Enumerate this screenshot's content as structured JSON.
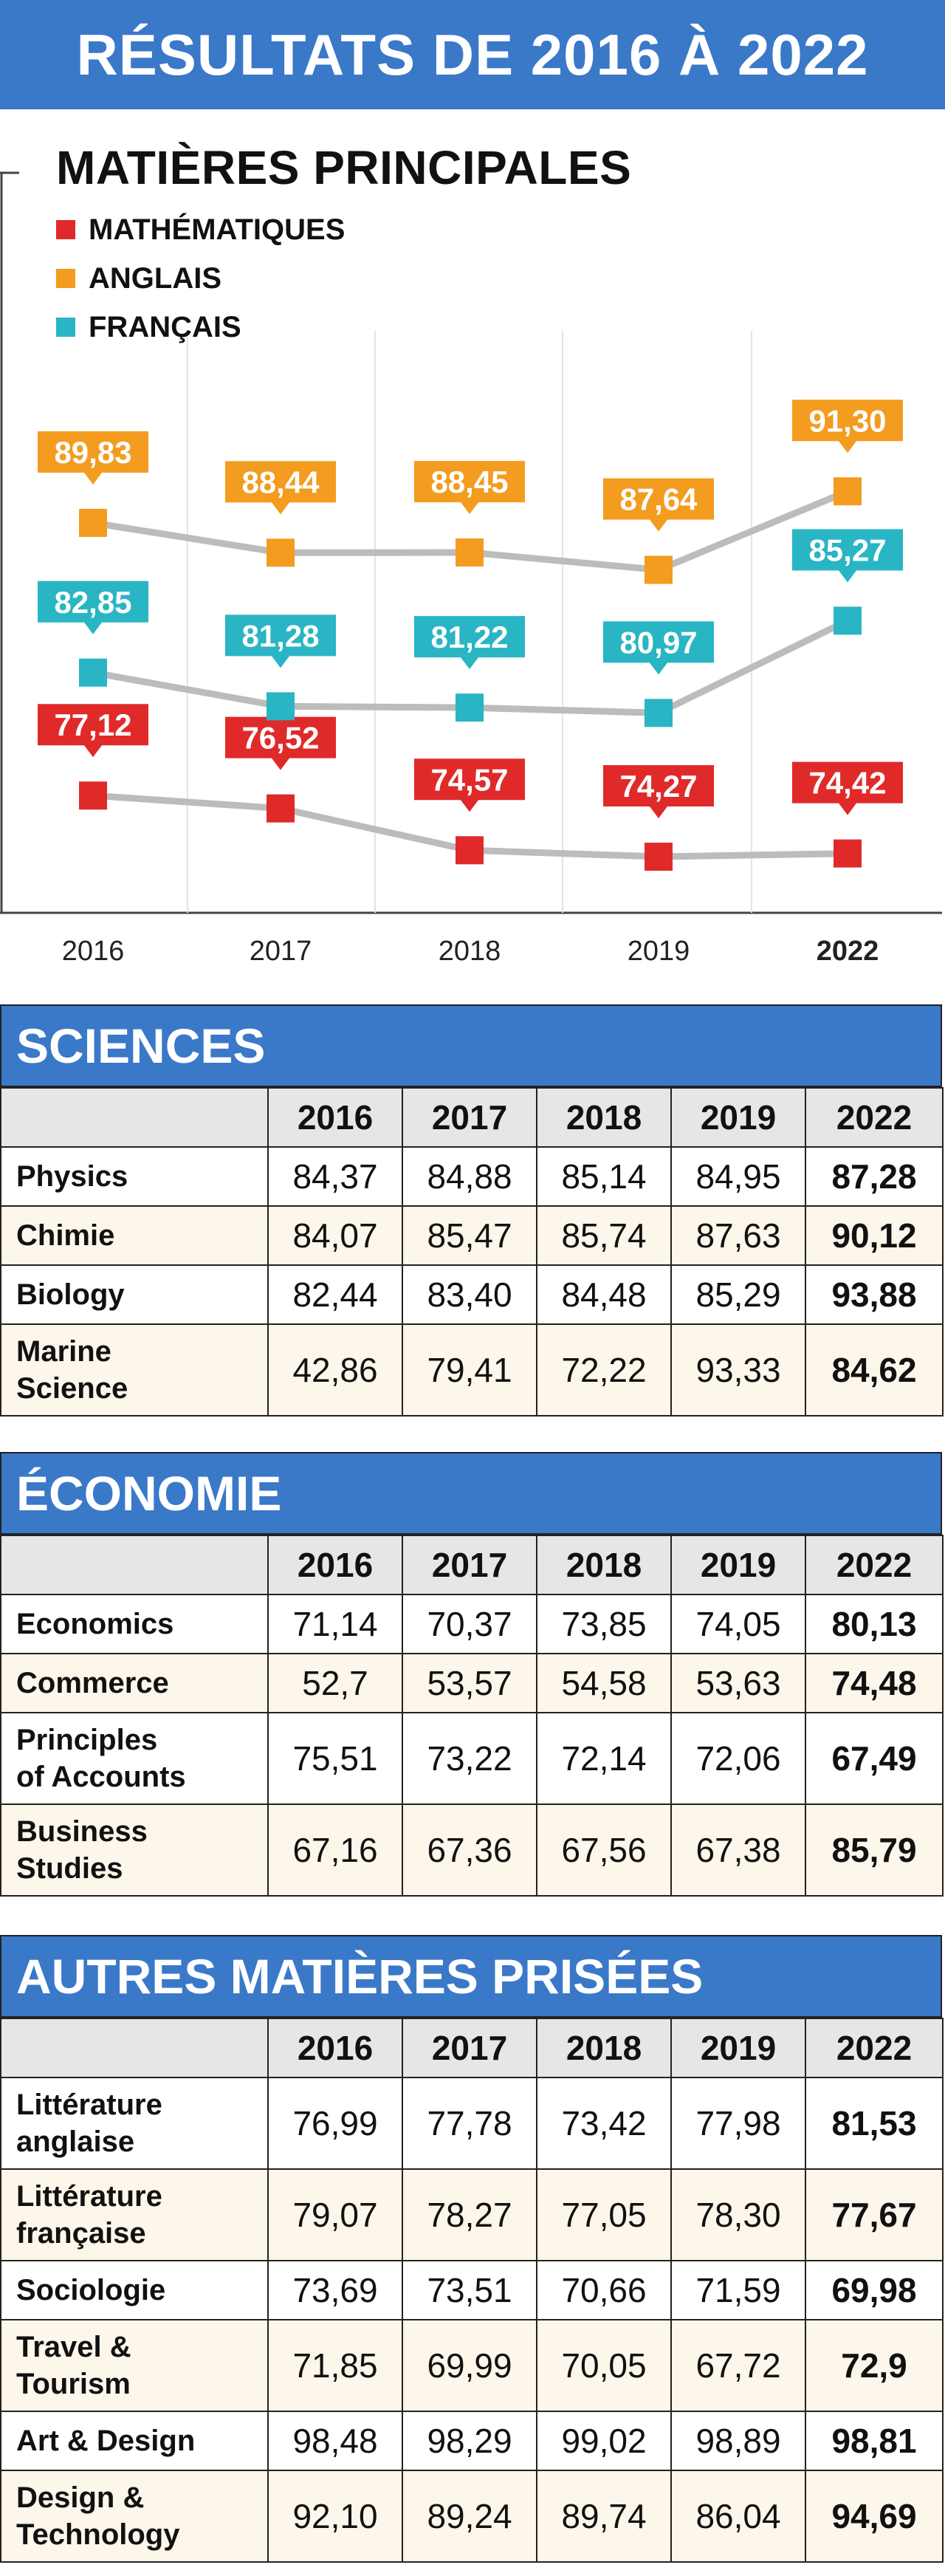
{
  "banner": {
    "title": "RÉSULTATS DE 2016 À 2022"
  },
  "chart_data": {
    "type": "line",
    "title": "MATIÈRES PRINCIPALES",
    "categories": [
      "2016",
      "2017",
      "2018",
      "2019",
      "2022"
    ],
    "series": [
      {
        "name": "MATHÉMATIQUES",
        "color": "#e02a2a",
        "values": [
          77.12,
          76.52,
          74.57,
          74.27,
          74.42
        ],
        "labels": [
          "77,12",
          "76,52",
          "74,57",
          "74,27",
          "74,42"
        ]
      },
      {
        "name": "ANGLAIS",
        "color": "#f39c1f",
        "values": [
          89.83,
          88.44,
          88.45,
          87.64,
          91.3
        ],
        "labels": [
          "89,83",
          "88,44",
          "88,45",
          "87,64",
          "91,30"
        ]
      },
      {
        "name": "FRANÇAIS",
        "color": "#29b5c4",
        "values": [
          82.85,
          81.28,
          81.22,
          80.97,
          85.27
        ],
        "labels": [
          "82,85",
          "81,28",
          "81,22",
          "80,97",
          "85,27"
        ]
      }
    ]
  },
  "tables": [
    {
      "title": "SCIENCES",
      "years": [
        "2016",
        "2017",
        "2018",
        "2019",
        "2022"
      ],
      "rows": [
        {
          "name": "Physics",
          "values": [
            "84,37",
            "84,88",
            "85,14",
            "84,95",
            "87,28"
          ]
        },
        {
          "name": "Chimie",
          "values": [
            "84,07",
            "85,47",
            "85,74",
            "87,63",
            "90,12"
          ]
        },
        {
          "name": "Biology",
          "values": [
            "82,44",
            "83,40",
            "84,48",
            "85,29",
            "93,88"
          ]
        },
        {
          "name": "Marine\nScience",
          "values": [
            "42,86",
            "79,41",
            "72,22",
            "93,33",
            "84,62"
          ]
        }
      ]
    },
    {
      "title": "ÉCONOMIE",
      "years": [
        "2016",
        "2017",
        "2018",
        "2019",
        "2022"
      ],
      "rows": [
        {
          "name": "Economics",
          "values": [
            "71,14",
            "70,37",
            "73,85",
            "74,05",
            "80,13"
          ]
        },
        {
          "name": "Commerce",
          "values": [
            "52,7",
            "53,57",
            "54,58",
            "53,63",
            "74,48"
          ]
        },
        {
          "name": "Principles\nof Accounts",
          "values": [
            "75,51",
            "73,22",
            "72,14",
            "72,06",
            "67,49"
          ]
        },
        {
          "name": "Business\nStudies",
          "values": [
            "67,16",
            "67,36",
            "67,56",
            "67,38",
            "85,79"
          ]
        }
      ]
    },
    {
      "title": "AUTRES MATIÈRES PRISÉES",
      "years": [
        "2016",
        "2017",
        "2018",
        "2019",
        "2022"
      ],
      "rows": [
        {
          "name": "Littérature\nanglaise",
          "values": [
            "76,99",
            "77,78",
            "73,42",
            "77,98",
            "81,53"
          ]
        },
        {
          "name": "Littérature\nfrançaise",
          "values": [
            "79,07",
            "78,27",
            "77,05",
            "78,30",
            "77,67"
          ]
        },
        {
          "name": "Sociologie",
          "values": [
            "73,69",
            "73,51",
            "70,66",
            "71,59",
            "69,98"
          ]
        },
        {
          "name": "Travel &\nTourism",
          "values": [
            "71,85",
            "69,99",
            "70,05",
            "67,72",
            "72,9"
          ]
        },
        {
          "name": "Art & Design",
          "values": [
            "98,48",
            "98,29",
            "99,02",
            "98,89",
            "98,81"
          ]
        },
        {
          "name": "Design &\nTechnology",
          "values": [
            "92,10",
            "89,24",
            "89,74",
            "86,04",
            "94,69"
          ]
        }
      ]
    }
  ]
}
